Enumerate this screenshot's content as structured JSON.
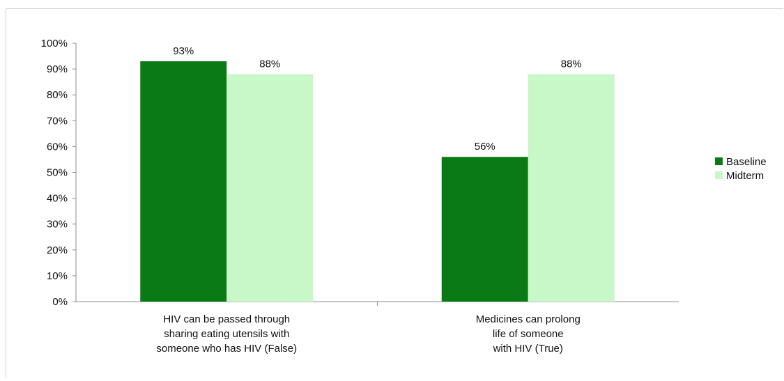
{
  "chart_data": {
    "type": "bar",
    "title": "",
    "xlabel": "",
    "ylabel": "",
    "ylim": [
      0,
      100
    ],
    "yticks": [
      0,
      10,
      20,
      30,
      40,
      50,
      60,
      70,
      80,
      90,
      100
    ],
    "ytick_labels": [
      "0%",
      "10%",
      "20%",
      "30%",
      "40%",
      "50%",
      "60%",
      "70%",
      "80%",
      "90%",
      "100%"
    ],
    "grid": false,
    "legend_position": "right",
    "categories": [
      [
        "HIV can be passed through",
        "sharing eating utensils with",
        "someone who has HIV (False)"
      ],
      [
        "Medicines can prolong",
        "life of someone",
        "with HIV (True)"
      ]
    ],
    "series": [
      {
        "name": "Baseline",
        "color": "#0a7a14",
        "values": [
          93,
          56
        ],
        "labels": [
          "93%",
          "56%"
        ]
      },
      {
        "name": "Midterm",
        "color": "#c8f7c8",
        "values": [
          88,
          88
        ],
        "labels": [
          "88%",
          "88%"
        ]
      }
    ]
  }
}
